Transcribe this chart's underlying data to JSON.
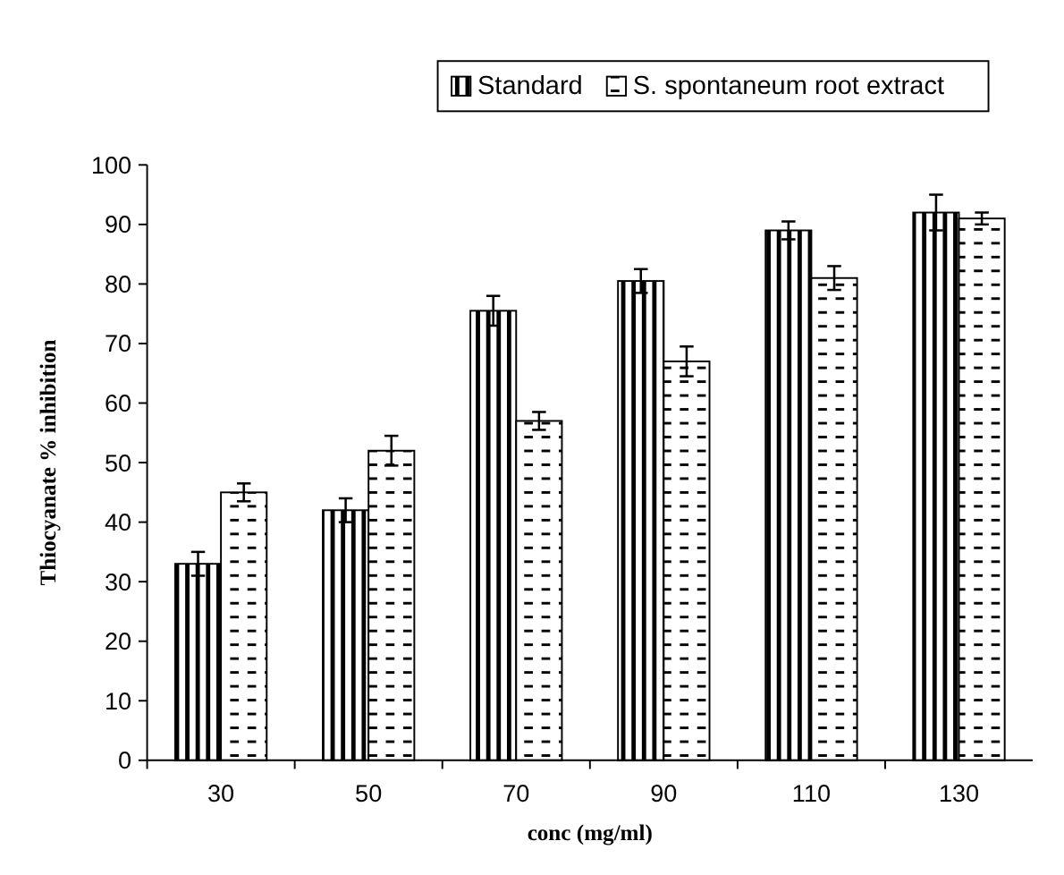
{
  "chart_data": {
    "type": "bar",
    "xlabel": "conc (mg/ml)",
    "ylabel": "Thiocyanate % inhibition",
    "categories": [
      "30",
      "50",
      "70",
      "90",
      "110",
      "130"
    ],
    "series": [
      {
        "name": "Standard",
        "color": "#000000",
        "values": [
          33,
          42,
          75.5,
          80.5,
          89,
          92
        ],
        "errors": [
          2,
          2,
          2.5,
          2,
          1.5,
          3
        ]
      },
      {
        "name": "S. spontaneum root extract",
        "color": "#000000",
        "values": [
          45,
          52,
          57,
          67,
          81,
          91
        ],
        "errors": [
          1.5,
          2.5,
          1.5,
          2.5,
          2,
          1
        ]
      }
    ],
    "ylim": [
      0,
      100
    ],
    "yticks": [
      0,
      10,
      20,
      30,
      40,
      50,
      60,
      70,
      80,
      90,
      100
    ],
    "legend": "top right"
  }
}
